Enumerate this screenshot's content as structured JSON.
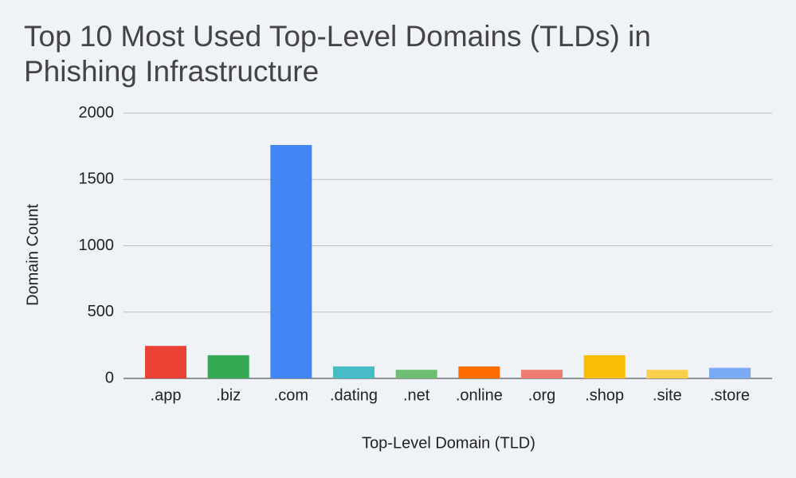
{
  "chart_data": {
    "type": "bar",
    "title": "Top 10 Most Used Top-Level Domains (TLDs) in Phishing Infrastructure",
    "x_label": "Top-Level Domain (TLD)",
    "y_label": "Domain Count",
    "categories": [
      ".app",
      ".biz",
      ".com",
      ".dating",
      ".net",
      ".online",
      ".org",
      ".shop",
      ".site",
      ".store"
    ],
    "values": [
      245,
      175,
      1760,
      90,
      65,
      90,
      65,
      175,
      65,
      80
    ],
    "colors": [
      "#ea4335",
      "#34a853",
      "#4285f4",
      "#46bdc6",
      "#6fbf73",
      "#ff6d01",
      "#f07b72",
      "#fbbc04",
      "#fcd04f",
      "#7baaf7"
    ],
    "ylim": [
      0,
      2000
    ],
    "yticks": [
      0,
      500,
      1000,
      1500,
      2000
    ],
    "grid": true
  }
}
